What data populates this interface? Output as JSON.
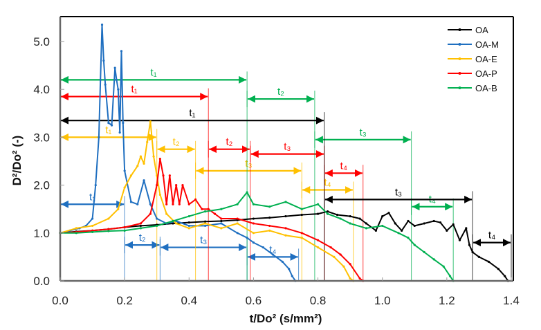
{
  "chart_data": {
    "type": "line",
    "title": "",
    "xlabel": "t/Do² (s/mm²)",
    "ylabel": "D²/Do² (-)",
    "xlim": [
      0.0,
      1.4
    ],
    "ylim": [
      0.0,
      5.4
    ],
    "xticks": [
      "0.0",
      "0.2",
      "0.4",
      "0.6",
      "0.8",
      "1.0",
      "1.2",
      "1.4"
    ],
    "yticks": [
      "0.0",
      "1.0",
      "2.0",
      "3.0",
      "4.0",
      "5.0"
    ],
    "grid": false,
    "legend_position": "top-right",
    "series": [
      {
        "name": "OA",
        "color": "#000000",
        "points": [
          [
            0,
            1.0
          ],
          [
            0.05,
            1.03
          ],
          [
            0.1,
            1.05
          ],
          [
            0.15,
            1.08
          ],
          [
            0.2,
            1.12
          ],
          [
            0.25,
            1.15
          ],
          [
            0.3,
            1.17
          ],
          [
            0.35,
            1.2
          ],
          [
            0.4,
            1.22
          ],
          [
            0.45,
            1.24
          ],
          [
            0.5,
            1.25
          ],
          [
            0.55,
            1.27
          ],
          [
            0.6,
            1.3
          ],
          [
            0.65,
            1.32
          ],
          [
            0.7,
            1.35
          ],
          [
            0.75,
            1.38
          ],
          [
            0.8,
            1.4
          ],
          [
            0.83,
            1.45
          ],
          [
            0.86,
            1.38
          ],
          [
            0.9,
            1.35
          ],
          [
            0.93,
            1.3
          ],
          [
            0.95,
            1.2
          ],
          [
            0.98,
            1.05
          ],
          [
            1.0,
            1.35
          ],
          [
            1.02,
            1.42
          ],
          [
            1.04,
            1.2
          ],
          [
            1.06,
            1.05
          ],
          [
            1.08,
            1.25
          ],
          [
            1.1,
            1.15
          ],
          [
            1.13,
            1.2
          ],
          [
            1.16,
            1.25
          ],
          [
            1.18,
            1.22
          ],
          [
            1.2,
            1.05
          ],
          [
            1.22,
            1.18
          ],
          [
            1.24,
            0.85
          ],
          [
            1.26,
            1.1
          ],
          [
            1.27,
            0.75
          ],
          [
            1.28,
            0.6
          ],
          [
            1.3,
            0.5
          ],
          [
            1.33,
            0.4
          ],
          [
            1.36,
            0.25
          ],
          [
            1.38,
            0.1
          ],
          [
            1.39,
            0.0
          ]
        ]
      },
      {
        "name": "OA-M",
        "color": "#1f6fc0",
        "points": [
          [
            0,
            1.0
          ],
          [
            0.03,
            1.05
          ],
          [
            0.06,
            1.1
          ],
          [
            0.08,
            1.15
          ],
          [
            0.1,
            1.3
          ],
          [
            0.11,
            2.0
          ],
          [
            0.12,
            3.0
          ],
          [
            0.125,
            4.2
          ],
          [
            0.13,
            5.35
          ],
          [
            0.135,
            4.6
          ],
          [
            0.14,
            4.1
          ],
          [
            0.15,
            3.3
          ],
          [
            0.16,
            3.25
          ],
          [
            0.17,
            4.45
          ],
          [
            0.175,
            4.2
          ],
          [
            0.18,
            4.0
          ],
          [
            0.185,
            3.1
          ],
          [
            0.19,
            4.8
          ],
          [
            0.195,
            3.3
          ],
          [
            0.2,
            2.3
          ],
          [
            0.22,
            1.65
          ],
          [
            0.24,
            1.6
          ],
          [
            0.26,
            2.1
          ],
          [
            0.28,
            1.6
          ],
          [
            0.3,
            1.3
          ],
          [
            0.33,
            1.2
          ],
          [
            0.36,
            1.25
          ],
          [
            0.4,
            1.15
          ],
          [
            0.45,
            1.15
          ],
          [
            0.5,
            1.2
          ],
          [
            0.55,
            1.0
          ],
          [
            0.58,
            0.9
          ],
          [
            0.6,
            0.8
          ],
          [
            0.63,
            0.7
          ],
          [
            0.66,
            0.55
          ],
          [
            0.69,
            0.4
          ],
          [
            0.71,
            0.25
          ],
          [
            0.72,
            0.1
          ],
          [
            0.73,
            0.0
          ]
        ]
      },
      {
        "name": "OA-E",
        "color": "#ffc000",
        "points": [
          [
            0,
            1.0
          ],
          [
            0.05,
            1.1
          ],
          [
            0.1,
            1.15
          ],
          [
            0.15,
            1.3
          ],
          [
            0.18,
            1.5
          ],
          [
            0.2,
            1.95
          ],
          [
            0.22,
            2.2
          ],
          [
            0.24,
            2.4
          ],
          [
            0.25,
            2.6
          ],
          [
            0.26,
            2.45
          ],
          [
            0.27,
            2.9
          ],
          [
            0.28,
            3.33
          ],
          [
            0.29,
            2.6
          ],
          [
            0.3,
            2.2
          ],
          [
            0.31,
            1.8
          ],
          [
            0.33,
            1.4
          ],
          [
            0.36,
            1.2
          ],
          [
            0.4,
            1.1
          ],
          [
            0.45,
            1.2
          ],
          [
            0.5,
            1.1
          ],
          [
            0.55,
            1.2
          ],
          [
            0.6,
            1.0
          ],
          [
            0.65,
            1.05
          ],
          [
            0.7,
            0.95
          ],
          [
            0.75,
            0.9
          ],
          [
            0.8,
            0.7
          ],
          [
            0.85,
            0.5
          ],
          [
            0.88,
            0.3
          ],
          [
            0.9,
            0.05
          ],
          [
            0.91,
            0.0
          ]
        ]
      },
      {
        "name": "OA-P",
        "color": "#ff0000",
        "points": [
          [
            0,
            1.0
          ],
          [
            0.05,
            1.02
          ],
          [
            0.1,
            1.05
          ],
          [
            0.15,
            1.08
          ],
          [
            0.2,
            1.12
          ],
          [
            0.25,
            1.2
          ],
          [
            0.28,
            1.4
          ],
          [
            0.3,
            2.0
          ],
          [
            0.31,
            2.55
          ],
          [
            0.32,
            2.2
          ],
          [
            0.33,
            1.6
          ],
          [
            0.34,
            2.2
          ],
          [
            0.35,
            1.6
          ],
          [
            0.36,
            2.0
          ],
          [
            0.37,
            1.6
          ],
          [
            0.38,
            2.0
          ],
          [
            0.4,
            1.6
          ],
          [
            0.42,
            1.7
          ],
          [
            0.44,
            1.5
          ],
          [
            0.46,
            1.5
          ],
          [
            0.48,
            1.4
          ],
          [
            0.5,
            1.3
          ],
          [
            0.55,
            1.3
          ],
          [
            0.6,
            1.2
          ],
          [
            0.65,
            1.15
          ],
          [
            0.7,
            1.1
          ],
          [
            0.75,
            1.0
          ],
          [
            0.8,
            0.85
          ],
          [
            0.84,
            0.7
          ],
          [
            0.87,
            0.55
          ],
          [
            0.9,
            0.35
          ],
          [
            0.93,
            0.05
          ],
          [
            0.94,
            0.0
          ]
        ]
      },
      {
        "name": "OA-B",
        "color": "#00b050",
        "points": [
          [
            0,
            1.0
          ],
          [
            0.05,
            1.0
          ],
          [
            0.1,
            1.02
          ],
          [
            0.15,
            1.04
          ],
          [
            0.2,
            1.05
          ],
          [
            0.25,
            1.1
          ],
          [
            0.3,
            1.15
          ],
          [
            0.35,
            1.25
          ],
          [
            0.4,
            1.35
          ],
          [
            0.45,
            1.45
          ],
          [
            0.5,
            1.5
          ],
          [
            0.55,
            1.6
          ],
          [
            0.58,
            1.85
          ],
          [
            0.6,
            1.6
          ],
          [
            0.65,
            1.55
          ],
          [
            0.7,
            1.65
          ],
          [
            0.75,
            1.5
          ],
          [
            0.8,
            1.6
          ],
          [
            0.83,
            1.4
          ],
          [
            0.87,
            1.3
          ],
          [
            0.9,
            1.2
          ],
          [
            0.95,
            1.1
          ],
          [
            1.0,
            1.15
          ],
          [
            1.05,
            1.0
          ],
          [
            1.08,
            0.9
          ],
          [
            1.1,
            0.75
          ],
          [
            1.13,
            0.6
          ],
          [
            1.16,
            0.45
          ],
          [
            1.19,
            0.3
          ],
          [
            1.21,
            0.1
          ],
          [
            1.22,
            0.0
          ]
        ]
      }
    ],
    "annotations": [
      {
        "series": "OA-M",
        "label": "t₁",
        "from": 0.0,
        "to": 0.2,
        "y": 1.6
      },
      {
        "series": "OA-M",
        "label": "t₂",
        "from": 0.2,
        "to": 0.31,
        "y": 0.75
      },
      {
        "series": "OA-M",
        "label": "t₃",
        "from": 0.31,
        "to": 0.58,
        "y": 0.7
      },
      {
        "series": "OA-M",
        "label": "t₄",
        "from": 0.58,
        "to": 0.74,
        "y": 0.5
      },
      {
        "series": "OA-E",
        "label": "t₁",
        "from": 0.0,
        "to": 0.3,
        "y": 3.0
      },
      {
        "series": "OA-E",
        "label": "t₂",
        "from": 0.3,
        "to": 0.42,
        "y": 2.75
      },
      {
        "series": "OA-E",
        "label": "t₃",
        "from": 0.42,
        "to": 0.75,
        "y": 2.3
      },
      {
        "series": "OA-E",
        "label": "t₄",
        "from": 0.75,
        "to": 0.91,
        "y": 1.9
      },
      {
        "series": "OA-P",
        "label": "t₁",
        "from": 0.0,
        "to": 0.46,
        "y": 3.85
      },
      {
        "series": "OA-P",
        "label": "t₂",
        "from": 0.46,
        "to": 0.59,
        "y": 2.75
      },
      {
        "series": "OA-P",
        "label": "t₃",
        "from": 0.59,
        "to": 0.82,
        "y": 2.65
      },
      {
        "series": "OA-P",
        "label": "t₄",
        "from": 0.82,
        "to": 0.94,
        "y": 2.25
      },
      {
        "series": "OA-B",
        "label": "t₁",
        "from": 0.0,
        "to": 0.58,
        "y": 4.2
      },
      {
        "series": "OA-B",
        "label": "t₂",
        "from": 0.58,
        "to": 0.79,
        "y": 3.8
      },
      {
        "series": "OA-B",
        "label": "t₃",
        "from": 0.79,
        "to": 1.09,
        "y": 2.95
      },
      {
        "series": "OA-B",
        "label": "t₄",
        "from": 1.09,
        "to": 1.22,
        "y": 1.55
      },
      {
        "series": "OA",
        "label": "t₁",
        "from": 0.0,
        "to": 0.82,
        "y": 3.35
      },
      {
        "series": "OA",
        "label": "t₃",
        "from": 0.82,
        "to": 1.28,
        "y": 1.7
      },
      {
        "series": "OA",
        "label": "t₄",
        "from": 1.28,
        "to": 1.4,
        "y": 0.8
      }
    ]
  }
}
